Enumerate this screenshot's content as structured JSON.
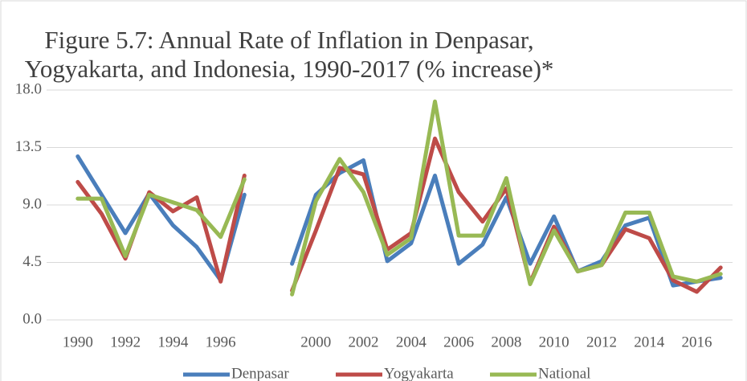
{
  "chart_data": {
    "type": "line",
    "title": "Figure 5.7: Annual Rate of Inflation in Denpasar, Yogyakarta, and Indonesia, 1990-2017 (% increase)*",
    "categories": [
      "1990",
      null,
      "1992",
      null,
      "1994",
      null,
      "1996",
      null,
      null,
      null,
      "2000",
      null,
      "2002",
      null,
      "2004",
      null,
      "2006",
      null,
      "2008",
      null,
      "2010",
      null,
      "2012",
      null,
      "2014",
      null,
      "2016",
      null
    ],
    "series": [
      {
        "name": "Denpasar",
        "color": "#4a7ebb",
        "values": [
          12.8,
          9.8,
          6.8,
          9.9,
          7.4,
          5.7,
          3.1,
          9.8,
          null,
          4.4,
          9.8,
          11.5,
          12.5,
          4.6,
          6.0,
          11.3,
          4.4,
          5.9,
          9.6,
          4.4,
          8.1,
          3.8,
          4.6,
          7.4,
          8.0,
          2.7,
          3.0,
          3.3
        ]
      },
      {
        "name": "Yogyakarta",
        "color": "#be4b48",
        "values": [
          10.8,
          8.3,
          4.8,
          10.0,
          8.5,
          9.6,
          3.0,
          11.3,
          null,
          2.3,
          7.0,
          11.9,
          11.4,
          5.5,
          6.8,
          14.2,
          10.0,
          7.7,
          10.3,
          2.9,
          7.3,
          3.8,
          4.3,
          7.1,
          6.4,
          3.1,
          2.2,
          4.1
        ]
      },
      {
        "name": "National",
        "color": "#98b954",
        "values": [
          9.5,
          9.5,
          5.0,
          9.8,
          9.2,
          8.6,
          6.5,
          11.0,
          null,
          2.0,
          9.3,
          12.6,
          10.0,
          5.1,
          6.4,
          17.1,
          6.6,
          6.6,
          11.1,
          2.8,
          7.0,
          3.8,
          4.3,
          8.4,
          8.4,
          3.4,
          3.0,
          3.6
        ]
      }
    ],
    "ylim": [
      0,
      18
    ],
    "yticks": [
      {
        "value": 0,
        "label": "0.0"
      },
      {
        "value": 4.5,
        "label": "4.5"
      },
      {
        "value": 9,
        "label": "9.0"
      },
      {
        "value": 13.5,
        "label": "13.5"
      },
      {
        "value": 18,
        "label": "18.0"
      }
    ],
    "grid": true,
    "legend": "bottom"
  }
}
